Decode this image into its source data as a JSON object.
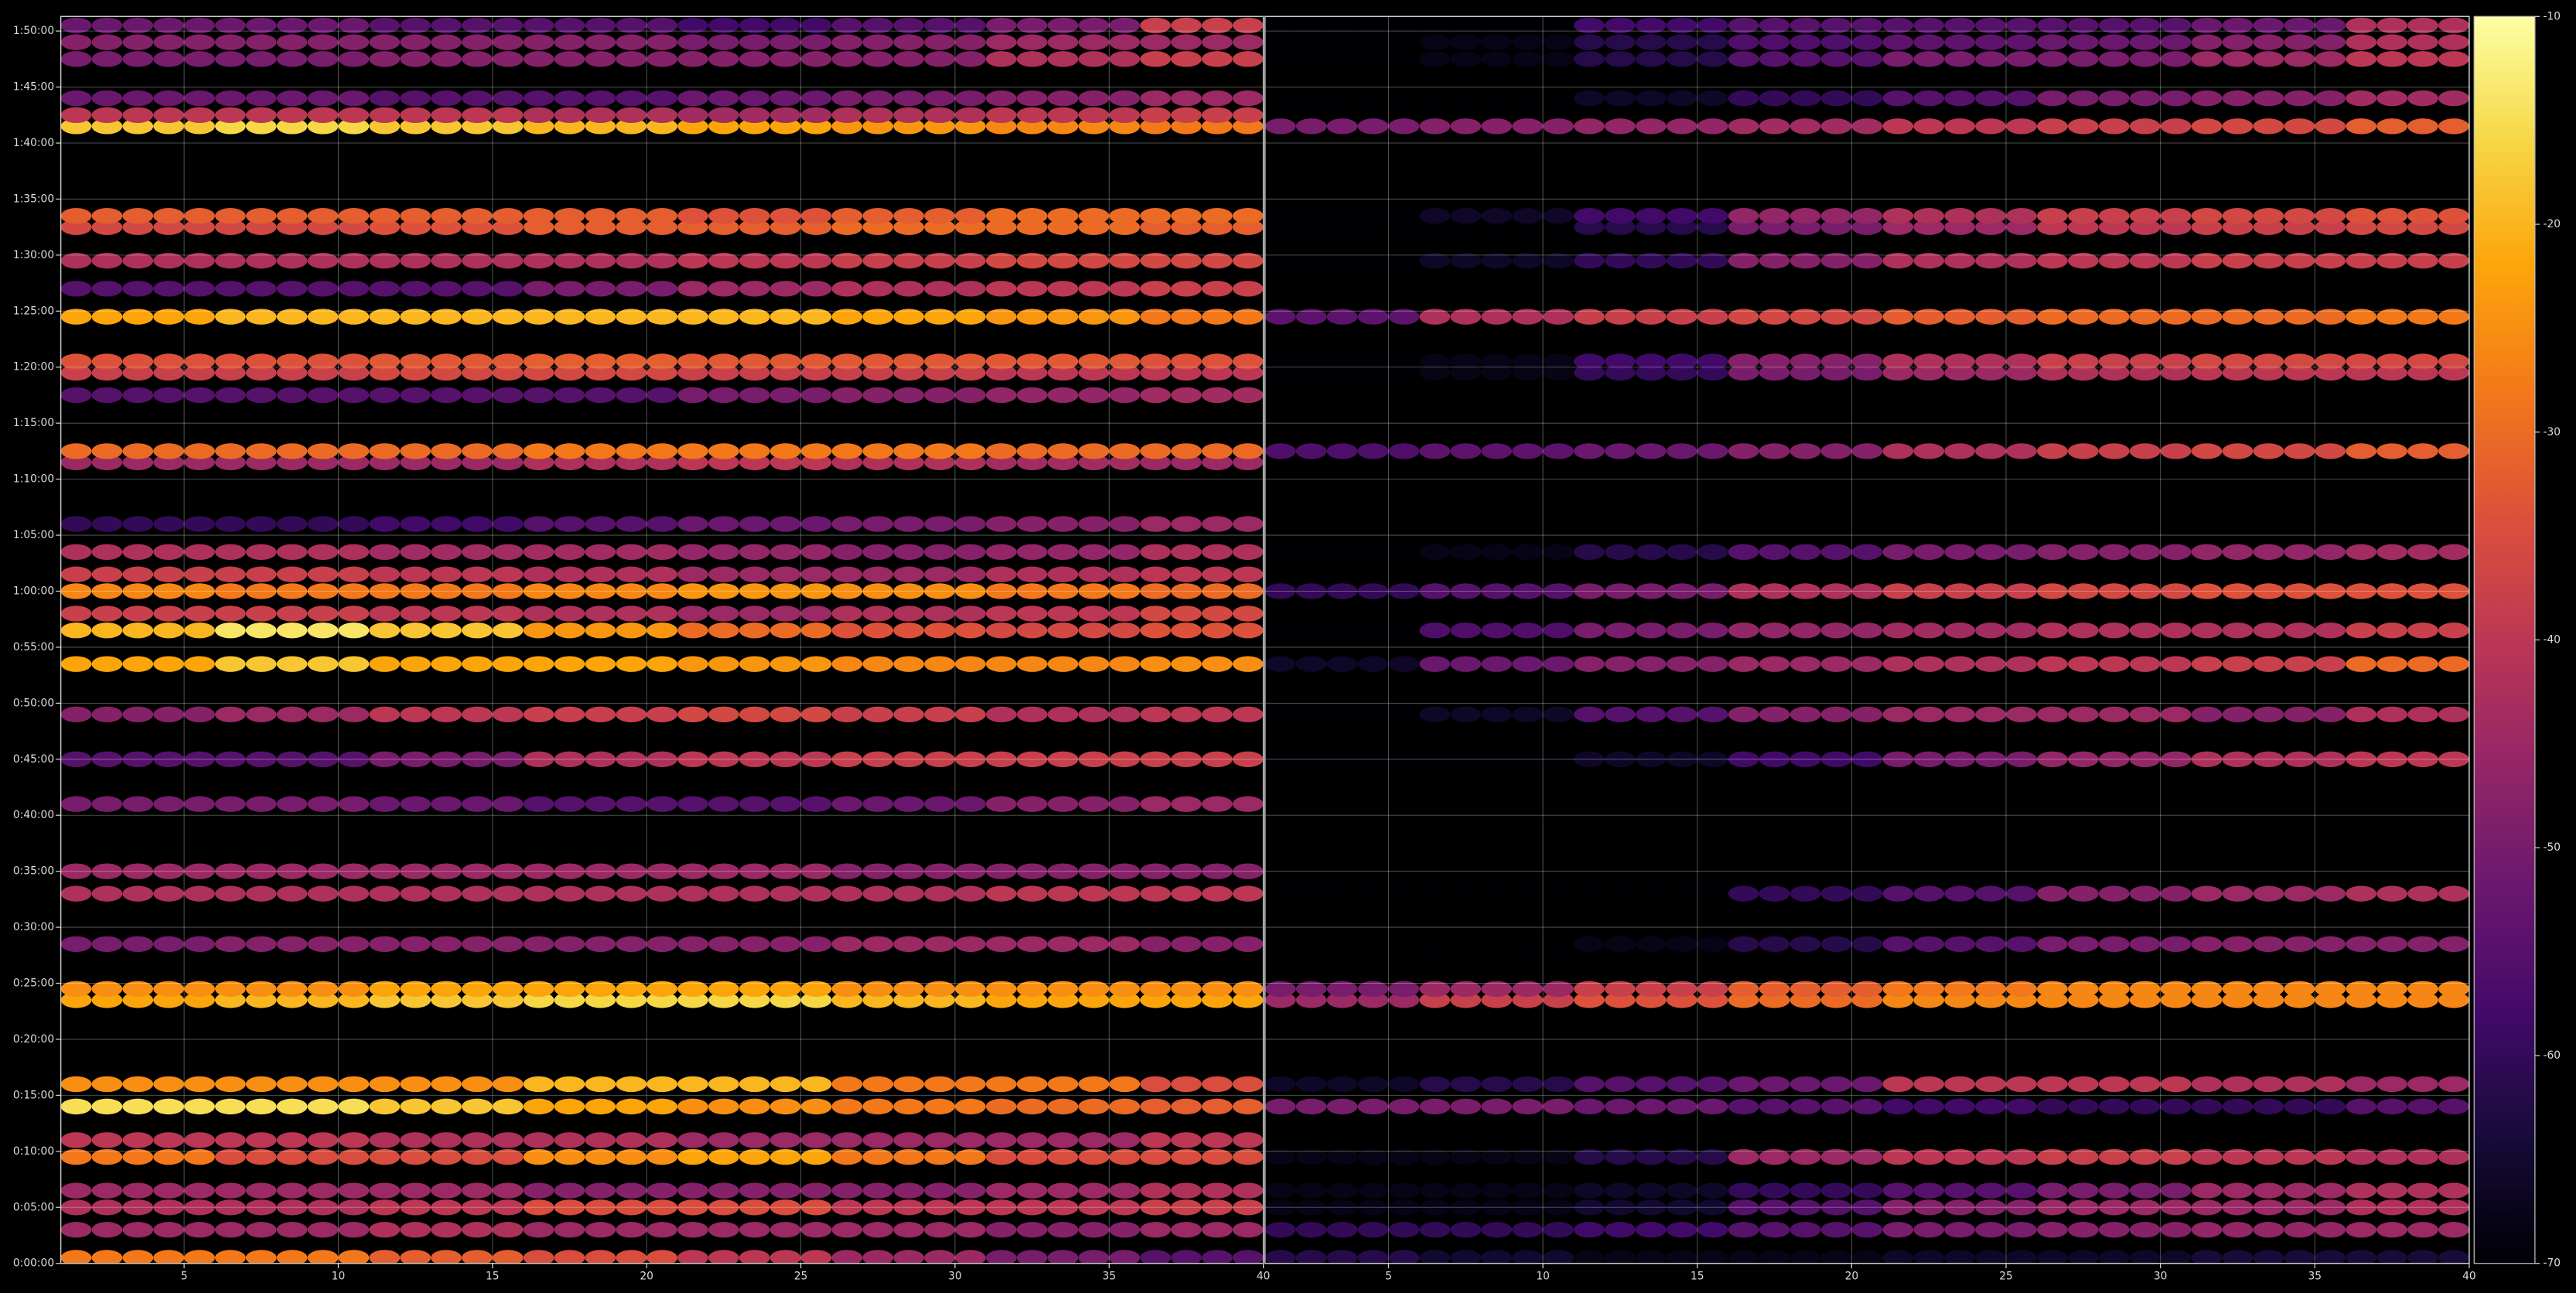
{
  "chart_data": {
    "type": "heatmap",
    "ylim": [
      0,
      111.3
    ],
    "yticks": [
      {
        "value": 0,
        "label": "0:00:00"
      },
      {
        "value": 5,
        "label": "0:05:00"
      },
      {
        "value": 10,
        "label": "0:10:00"
      },
      {
        "value": 15,
        "label": "0:15:00"
      },
      {
        "value": 20,
        "label": "0:20:00"
      },
      {
        "value": 25,
        "label": "0:25:00"
      },
      {
        "value": 30,
        "label": "0:30:00"
      },
      {
        "value": 35,
        "label": "0:35:00"
      },
      {
        "value": 40,
        "label": "0:40:00"
      },
      {
        "value": 45,
        "label": "0:45:00"
      },
      {
        "value": 50,
        "label": "0:50:00"
      },
      {
        "value": 55,
        "label": "0:55:00"
      },
      {
        "value": 60,
        "label": "1:00:00"
      },
      {
        "value": 65,
        "label": "1:05:00"
      },
      {
        "value": 70,
        "label": "1:10:00"
      },
      {
        "value": 75,
        "label": "1:15:00"
      },
      {
        "value": 80,
        "label": "1:20:00"
      },
      {
        "value": 85,
        "label": "1:25:00"
      },
      {
        "value": 90,
        "label": "1:30:00"
      },
      {
        "value": 95,
        "label": "1:35:00"
      },
      {
        "value": 100,
        "label": "1:40:00"
      },
      {
        "value": 105,
        "label": "1:45:00"
      },
      {
        "value": 110,
        "label": "1:50:00"
      }
    ],
    "grid": true,
    "colorbar": {
      "lim": [
        -70,
        -10
      ],
      "ticks": [
        -70,
        -60,
        -50,
        -40,
        -30,
        -20,
        -10
      ]
    },
    "panels": [
      {
        "xlim": [
          1,
          40
        ],
        "xticks": [
          5,
          10,
          15,
          20,
          25,
          30,
          35,
          40
        ],
        "bands": [
          {
            "time": 0.5,
            "values": [
              -28,
              -28,
              -32,
              -35,
              -40,
              -45,
              -50,
              -55
            ]
          },
          {
            "time": 3,
            "values": [
              -45,
              -45,
              -42,
              -45,
              -45,
              -45,
              -48,
              -45
            ]
          },
          {
            "time": 5,
            "values": [
              -42,
              -42,
              -40,
              -35,
              -35,
              -40,
              -40,
              -38
            ]
          },
          {
            "time": 6.5,
            "values": [
              -45,
              -45,
              -45,
              -48,
              -48,
              -48,
              -45,
              -42
            ]
          },
          {
            "time": 9.5,
            "values": [
              -28,
              -35,
              -35,
              -25,
              -22,
              -28,
              -35,
              -35
            ]
          },
          {
            "time": 11,
            "values": [
              -40,
              -40,
              -42,
              -42,
              -45,
              -45,
              -45,
              -40
            ]
          },
          {
            "time": 14,
            "values": [
              -15,
              -15,
              -18,
              -22,
              -25,
              -28,
              -30,
              -32
            ]
          },
          {
            "time": 16,
            "values": [
              -25,
              -25,
              -25,
              -20,
              -20,
              -28,
              -28,
              -35
            ]
          },
          {
            "time": 23.5,
            "values": [
              -22,
              -20,
              -18,
              -16,
              -16,
              -20,
              -22,
              -22
            ]
          },
          {
            "time": 24.5,
            "values": [
              -25,
              -25,
              -22,
              -22,
              -22,
              -25,
              -25,
              -25
            ]
          },
          {
            "time": 28.5,
            "values": [
              -50,
              -48,
              -48,
              -48,
              -48,
              -45,
              -45,
              -48
            ]
          },
          {
            "time": 33,
            "values": [
              -42,
              -42,
              -42,
              -42,
              -42,
              -42,
              -40,
              -40
            ]
          },
          {
            "time": 35,
            "values": [
              -45,
              -45,
              -45,
              -45,
              -45,
              -48,
              -48,
              -48
            ]
          },
          {
            "time": 41,
            "values": [
              -50,
              -50,
              -52,
              -55,
              -55,
              -52,
              -48,
              -45
            ]
          },
          {
            "time": 45,
            "values": [
              -55,
              -55,
              -50,
              -42,
              -40,
              -38,
              -38,
              -38
            ]
          },
          {
            "time": 49,
            "values": [
              -48,
              -45,
              -40,
              -38,
              -36,
              -38,
              -42,
              -40
            ]
          },
          {
            "time": 53.5,
            "values": [
              -22,
              -18,
              -22,
              -22,
              -24,
              -26,
              -26,
              -25
            ]
          },
          {
            "time": 56.5,
            "values": [
              -20,
              -14,
              -18,
              -24,
              -30,
              -34,
              -36,
              -34
            ]
          },
          {
            "time": 58,
            "values": [
              -38,
              -38,
              -40,
              -42,
              -45,
              -42,
              -40,
              -36
            ]
          },
          {
            "time": 60,
            "values": [
              -26,
              -28,
              -28,
              -26,
              -24,
              -25,
              -28,
              -30
            ]
          },
          {
            "time": 61.5,
            "values": [
              -38,
              -38,
              -40,
              -42,
              -45,
              -45,
              -42,
              -40
            ]
          },
          {
            "time": 63.5,
            "values": [
              -42,
              -42,
              -44,
              -44,
              -46,
              -48,
              -46,
              -42
            ]
          },
          {
            "time": 66,
            "values": [
              -60,
              -60,
              -58,
              -55,
              -52,
              -50,
              -48,
              -45
            ]
          },
          {
            "time": 71.5,
            "values": [
              -45,
              -45,
              -45,
              -42,
              -40,
              -42,
              -44,
              -45
            ]
          },
          {
            "time": 72.5,
            "values": [
              -30,
              -30,
              -30,
              -28,
              -28,
              -28,
              -30,
              -30
            ]
          },
          {
            "time": 77.5,
            "values": [
              -55,
              -55,
              -55,
              -55,
              -50,
              -48,
              -46,
              -44
            ]
          },
          {
            "time": 79.5,
            "values": [
              -38,
              -38,
              -36,
              -36,
              -38,
              -38,
              -40,
              -40
            ]
          },
          {
            "time": 80.5,
            "values": [
              -34,
              -34,
              -33,
              -32,
              -33,
              -33,
              -33,
              -34
            ]
          },
          {
            "time": 84.5,
            "values": [
              -22,
              -20,
              -20,
              -20,
              -20,
              -22,
              -24,
              -28
            ]
          },
          {
            "time": 87,
            "values": [
              -55,
              -55,
              -55,
              -50,
              -45,
              -42,
              -40,
              -38
            ]
          },
          {
            "time": 89.5,
            "values": [
              -42,
              -42,
              -42,
              -42,
              -40,
              -38,
              -36,
              -36
            ]
          },
          {
            "time": 92.5,
            "values": [
              -36,
              -36,
              -34,
              -32,
              -32,
              -30,
              -30,
              -32
            ]
          },
          {
            "time": 93.5,
            "values": [
              -32,
              -32,
              -32,
              -32,
              -34,
              -32,
              -30,
              -30
            ]
          },
          {
            "time": 101.5,
            "values": [
              -18,
              -16,
              -18,
              -20,
              -22,
              -24,
              -26,
              -28
            ]
          },
          {
            "time": 102.5,
            "values": [
              -40,
              -40,
              -40,
              -42,
              -44,
              -42,
              -40,
              -38
            ]
          },
          {
            "time": 104,
            "values": [
              -52,
              -52,
              -55,
              -55,
              -52,
              -50,
              -48,
              -45
            ]
          },
          {
            "time": 107.5,
            "values": [
              -50,
              -50,
              -48,
              -48,
              -48,
              -48,
              -42,
              -38
            ]
          },
          {
            "time": 109,
            "values": [
              -48,
              -48,
              -48,
              -48,
              -50,
              -48,
              -45,
              -45
            ]
          },
          {
            "time": 110.5,
            "values": [
              -52,
              -52,
              -55,
              -55,
              -58,
              -55,
              -50,
              -38
            ]
          }
        ]
      },
      {
        "xlim": [
          1,
          40
        ],
        "xticks": [
          5,
          10,
          15,
          20,
          25,
          30,
          35,
          40
        ],
        "bands": [
          {
            "time": 0.5,
            "values": [
              -62,
              -65,
              -68,
              -68,
              -66,
              -66,
              -64,
              -64
            ]
          },
          {
            "time": 3,
            "values": [
              -60,
              -60,
              -58,
              -55,
              -50,
              -48,
              -46,
              -45
            ]
          },
          {
            "time": 5,
            "values": [
              -68,
              -68,
              -65,
              -55,
              -48,
              -45,
              -45,
              -42
            ]
          },
          {
            "time": 6.5,
            "values": [
              -68,
              -68,
              -66,
              -60,
              -55,
              -50,
              -45,
              -42
            ]
          },
          {
            "time": 9.5,
            "values": [
              -68,
              -68,
              -62,
              -45,
              -40,
              -38,
              -40,
              -42
            ]
          },
          {
            "time": 14,
            "values": [
              -50,
              -50,
              -52,
              -55,
              -58,
              -60,
              -60,
              -55
            ]
          },
          {
            "time": 16,
            "values": [
              -66,
              -62,
              -55,
              -52,
              -40,
              -40,
              -42,
              -45
            ]
          },
          {
            "time": 23.5,
            "values": [
              -45,
              -38,
              -34,
              -30,
              -26,
              -26,
              -26,
              -26
            ]
          },
          {
            "time": 24.5,
            "values": [
              -50,
              -45,
              -38,
              -32,
              -28,
              -26,
              -26,
              -26
            ]
          },
          {
            "time": 28.5,
            "values": [
              -70,
              -70,
              -68,
              -62,
              -55,
              -50,
              -48,
              -48
            ]
          },
          {
            "time": 33,
            "values": [
              -70,
              -70,
              -70,
              -60,
              -55,
              -48,
              -45,
              -42
            ]
          },
          {
            "time": 45,
            "values": [
              -70,
              -70,
              -66,
              -58,
              -50,
              -46,
              -42,
              -40
            ]
          },
          {
            "time": 49,
            "values": [
              -70,
              -66,
              -55,
              -48,
              -45,
              -45,
              -48,
              -42
            ]
          },
          {
            "time": 53.5,
            "values": [
              -66,
              -52,
              -48,
              -45,
              -42,
              -40,
              -38,
              -30
            ]
          },
          {
            "time": 56.5,
            "values": [
              -70,
              -56,
              -50,
              -46,
              -44,
              -42,
              -42,
              -38
            ]
          },
          {
            "time": 60,
            "values": [
              -60,
              -55,
              -50,
              -42,
              -38,
              -36,
              -34,
              -34
            ]
          },
          {
            "time": 63.5,
            "values": [
              -70,
              -68,
              -62,
              -55,
              -50,
              -48,
              -46,
              -44
            ]
          },
          {
            "time": 72.5,
            "values": [
              -56,
              -54,
              -52,
              -48,
              -42,
              -38,
              -36,
              -32
            ]
          },
          {
            "time": 79.5,
            "values": [
              -70,
              -68,
              -60,
              -50,
              -45,
              -42,
              -40,
              -40
            ]
          },
          {
            "time": 80.5,
            "values": [
              -70,
              -68,
              -58,
              -48,
              -42,
              -38,
              -36,
              -36
            ]
          },
          {
            "time": 84.5,
            "values": [
              -54,
              -42,
              -38,
              -36,
              -32,
              -30,
              -30,
              -28
            ]
          },
          {
            "time": 89.5,
            "values": [
              -70,
              -66,
              -60,
              -48,
              -42,
              -40,
              -38,
              -38
            ]
          },
          {
            "time": 92.5,
            "values": [
              -70,
              -70,
              -62,
              -50,
              -45,
              -40,
              -38,
              -36
            ]
          },
          {
            "time": 93.5,
            "values": [
              -70,
              -66,
              -58,
              -46,
              -42,
              -38,
              -36,
              -34
            ]
          },
          {
            "time": 101.5,
            "values": [
              -50,
              -48,
              -46,
              -44,
              -40,
              -38,
              -36,
              -32
            ]
          },
          {
            "time": 104,
            "values": [
              -70,
              -70,
              -66,
              -60,
              -55,
              -50,
              -48,
              -44
            ]
          },
          {
            "time": 107.5,
            "values": [
              -70,
              -68,
              -62,
              -55,
              -50,
              -50,
              -45,
              -40
            ]
          },
          {
            "time": 109,
            "values": [
              -70,
              -68,
              -62,
              -56,
              -54,
              -52,
              -48,
              -42
            ]
          },
          {
            "time": 110.5,
            "values": [
              -70,
              -70,
              -58,
              -55,
              -55,
              -55,
              -52,
              -42
            ]
          }
        ]
      }
    ]
  }
}
